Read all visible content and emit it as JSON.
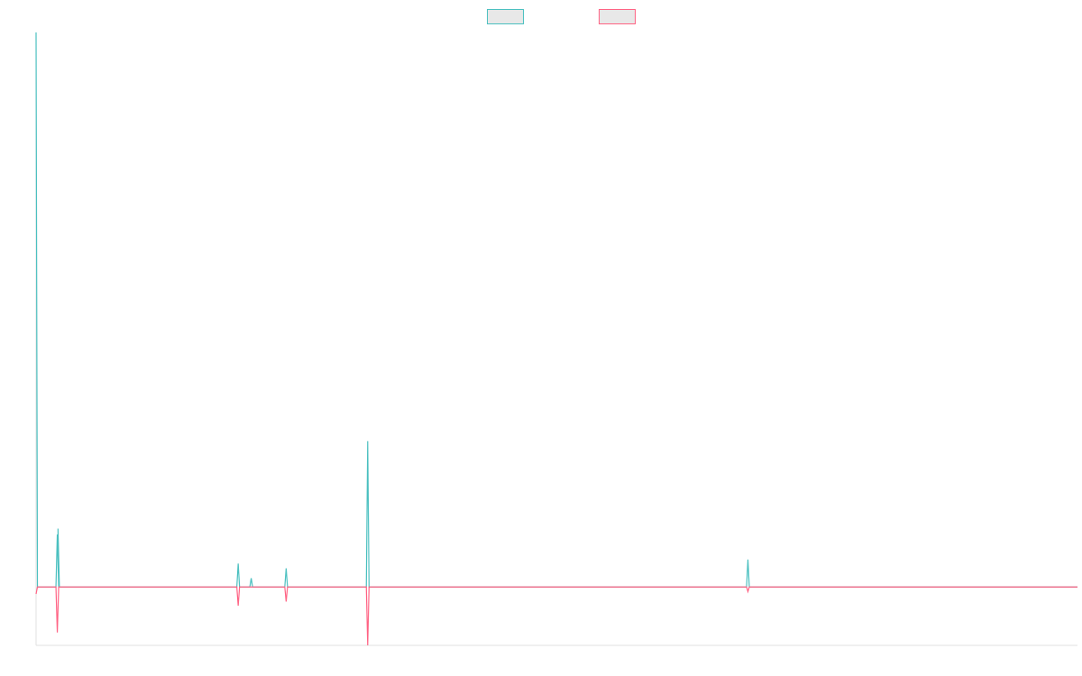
{
  "colors": {
    "series_a": "#4bc0c0",
    "series_b": "#ff6384",
    "legend_fill": "#e8e8e8",
    "axis": "#e0e0e0"
  },
  "legend": {
    "placement": "top-center",
    "entries": [
      {
        "label": "",
        "color_key": "series_a"
      },
      {
        "label": "",
        "color_key": "series_b"
      }
    ]
  },
  "chart_data": {
    "type": "line",
    "title": "",
    "xlabel": "",
    "ylabel": "",
    "grid": false,
    "x_count": 1521,
    "ylim": [
      -100,
      950
    ],
    "series": [
      {
        "color_key": "series_a",
        "baseline": 0,
        "spikes": [
          {
            "x": 0,
            "y": 950
          },
          {
            "x": 31,
            "y": 90
          },
          {
            "x": 32,
            "y": 100
          },
          {
            "x": 194,
            "y": 0
          },
          {
            "x": 295,
            "y": 40
          },
          {
            "x": 314,
            "y": 15
          },
          {
            "x": 365,
            "y": 32
          },
          {
            "x": 484,
            "y": 250
          },
          {
            "x": 1039,
            "y": 47
          }
        ]
      },
      {
        "color_key": "series_b",
        "baseline": 0,
        "spikes": [
          {
            "x": 0,
            "y": -12
          },
          {
            "x": 31,
            "y": -78
          },
          {
            "x": 295,
            "y": -32
          },
          {
            "x": 365,
            "y": -25
          },
          {
            "x": 484,
            "y": -100
          },
          {
            "x": 1039,
            "y": -8
          }
        ]
      }
    ]
  }
}
